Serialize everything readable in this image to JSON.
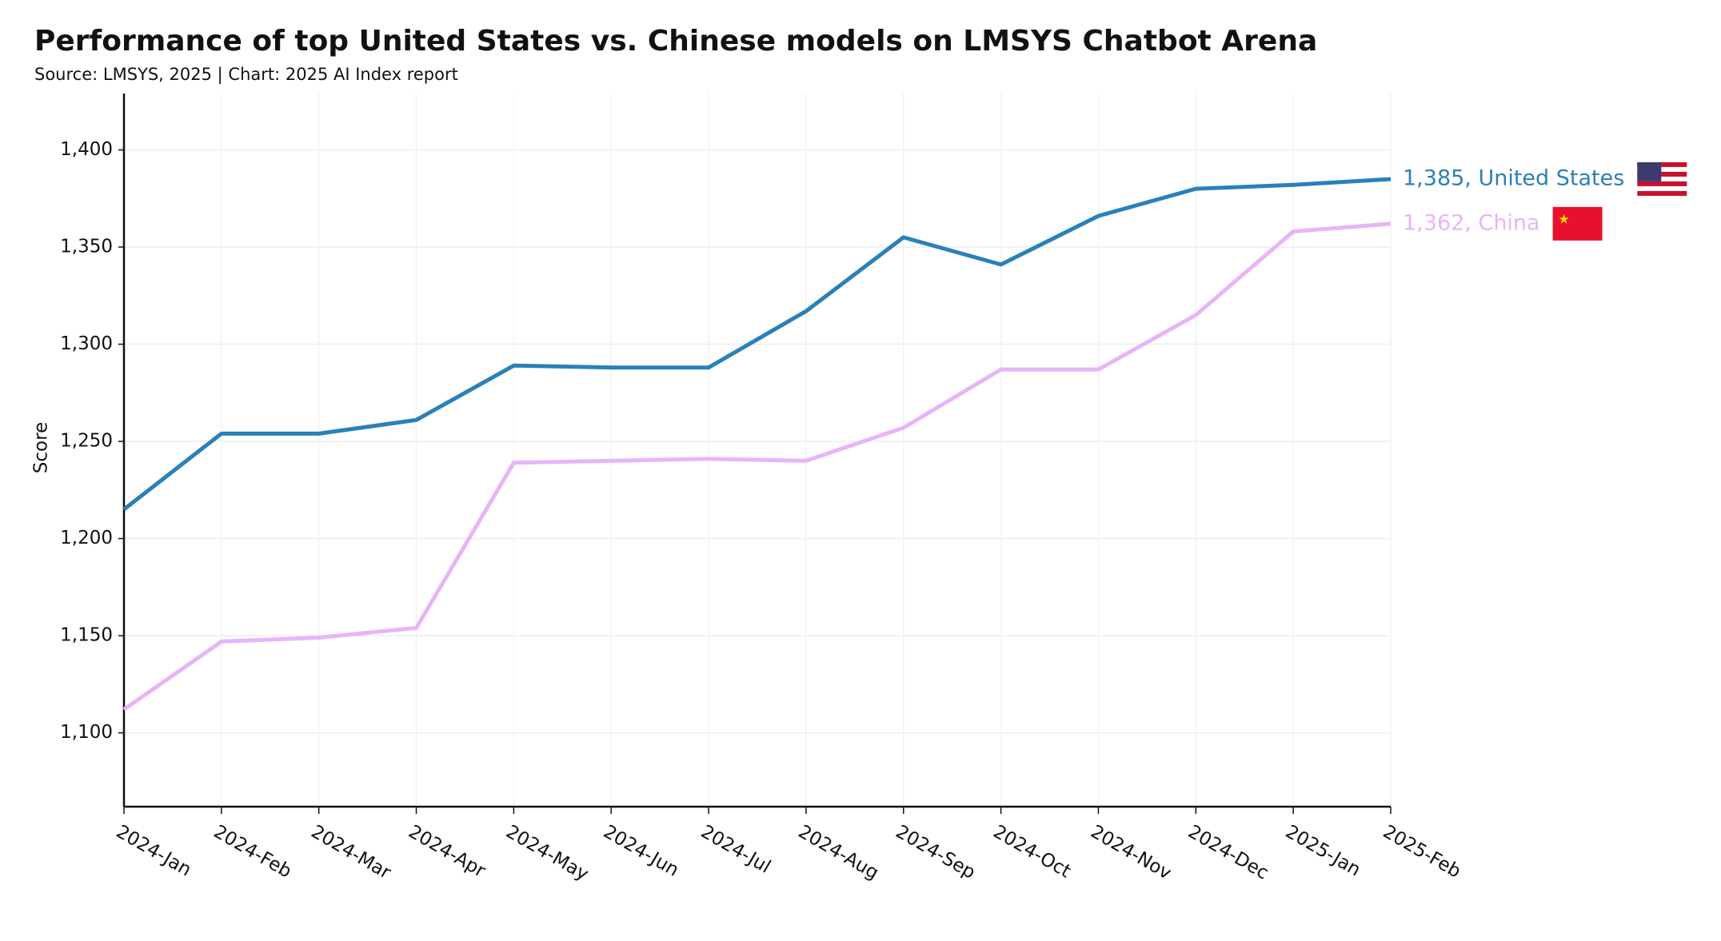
{
  "chart_data": {
    "type": "line",
    "title": "Performance of top United States vs. Chinese models on LMSYS Chatbot Arena",
    "subtitle": "Source: LMSYS, 2025 | Chart: 2025 AI Index report",
    "y_label": "Score",
    "categories": [
      "2024-Jan",
      "2024-Feb",
      "2024-Mar",
      "2024-Apr",
      "2024-May",
      "2024-Jun",
      "2024-Jul",
      "2024-Aug",
      "2024-Sep",
      "2024-Oct",
      "2024-Nov",
      "2024-Dec",
      "2025-Jan",
      "2025-Feb"
    ],
    "series": [
      {
        "name": "United States",
        "color": "#2a80b9",
        "label": "1,385, United States",
        "values": [
          1215,
          1254,
          1254,
          1261,
          1289,
          1288,
          1288,
          1317,
          1355,
          1341,
          1366,
          1380,
          1382,
          1385
        ]
      },
      {
        "name": "China",
        "color": "#e8b4f8",
        "label": "1,362, China",
        "values": [
          1112,
          1147,
          1149,
          1154,
          1239,
          1240,
          1241,
          1240,
          1257,
          1287,
          1287,
          1315,
          1358,
          1362
        ]
      }
    ],
    "ylim": [
      1062,
      1429
    ],
    "yticks": [
      {
        "value": 1100,
        "label": "1,100"
      },
      {
        "value": 1150,
        "label": "1,150"
      },
      {
        "value": 1200,
        "label": "1,200"
      },
      {
        "value": 1250,
        "label": "1,250"
      },
      {
        "value": 1300,
        "label": "1,300"
      },
      {
        "value": 1350,
        "label": "1,350"
      },
      {
        "value": 1400,
        "label": "1,400"
      }
    ],
    "grid": true
  }
}
